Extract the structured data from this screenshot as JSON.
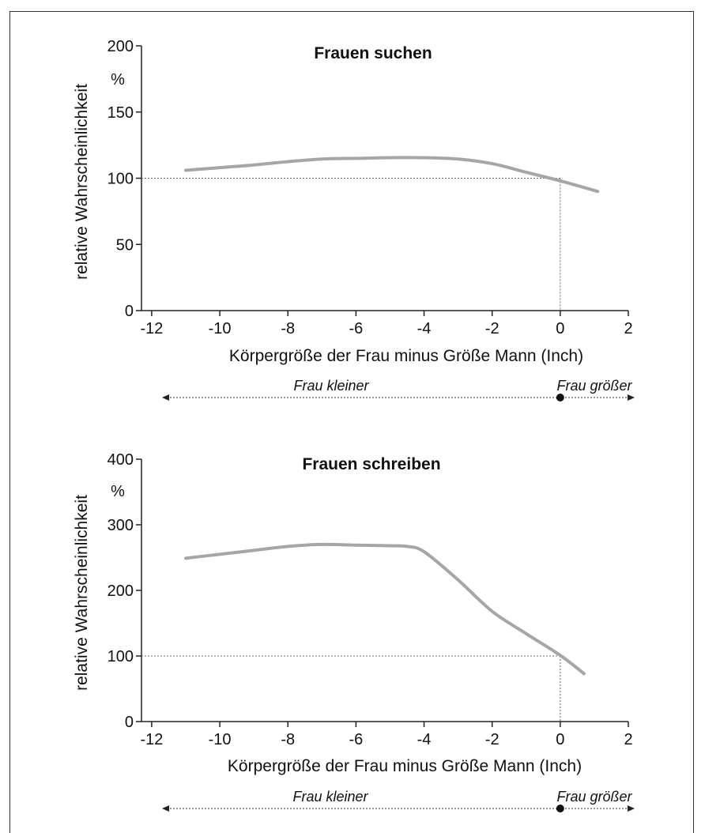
{
  "chart_data": [
    {
      "type": "line",
      "title": "Frauen suchen",
      "xlabel": "Körpergröße der Frau minus Größe Mann (Inch)",
      "ylabel": "relative Wahrscheinlichkeit",
      "yunit": "%",
      "xlim": [
        -12.3,
        2
      ],
      "ylim": [
        0,
        200
      ],
      "xticks": [
        -12,
        -10,
        -8,
        -6,
        -4,
        -2,
        0,
        2
      ],
      "yticks": [
        0,
        50,
        100,
        150,
        200
      ],
      "reference": {
        "y": 100,
        "x": 0
      },
      "series": [
        {
          "color": "#a6a6a6",
          "x": [
            -11,
            -10,
            -9,
            -8,
            -7,
            -6,
            -5,
            -4,
            -3,
            -2,
            -1,
            0,
            1.1
          ],
          "y": [
            106,
            108,
            110,
            112.5,
            114.5,
            115,
            115.5,
            115.5,
            114.5,
            111,
            104.5,
            98,
            90
          ]
        }
      ],
      "direction": {
        "left": "Frau kleiner",
        "right": "Frau größer"
      }
    },
    {
      "type": "line",
      "title": "Frauen schreiben",
      "xlabel": "Körpergröße der Frau minus Größe Mann (Inch)",
      "ylabel": "relative Wahrscheinlichkeit",
      "yunit": "%",
      "xlim": [
        -12.3,
        2
      ],
      "ylim": [
        0,
        400
      ],
      "xticks": [
        -12,
        -10,
        -8,
        -6,
        -4,
        -2,
        0,
        2
      ],
      "yticks": [
        0,
        100,
        200,
        300,
        400
      ],
      "reference": {
        "y": 100,
        "x": 0
      },
      "series": [
        {
          "color": "#a6a6a6",
          "x": [
            -11,
            -10,
            -9,
            -8,
            -7,
            -6,
            -5,
            -4.5,
            -4,
            -3,
            -2,
            -1,
            0,
            0.7
          ],
          "y": [
            249,
            255,
            261,
            267,
            270,
            269,
            268,
            267,
            259,
            216,
            168,
            134,
            101,
            73
          ]
        }
      ],
      "direction": {
        "left": "Frau kleiner",
        "right": "Frau größer"
      }
    }
  ]
}
